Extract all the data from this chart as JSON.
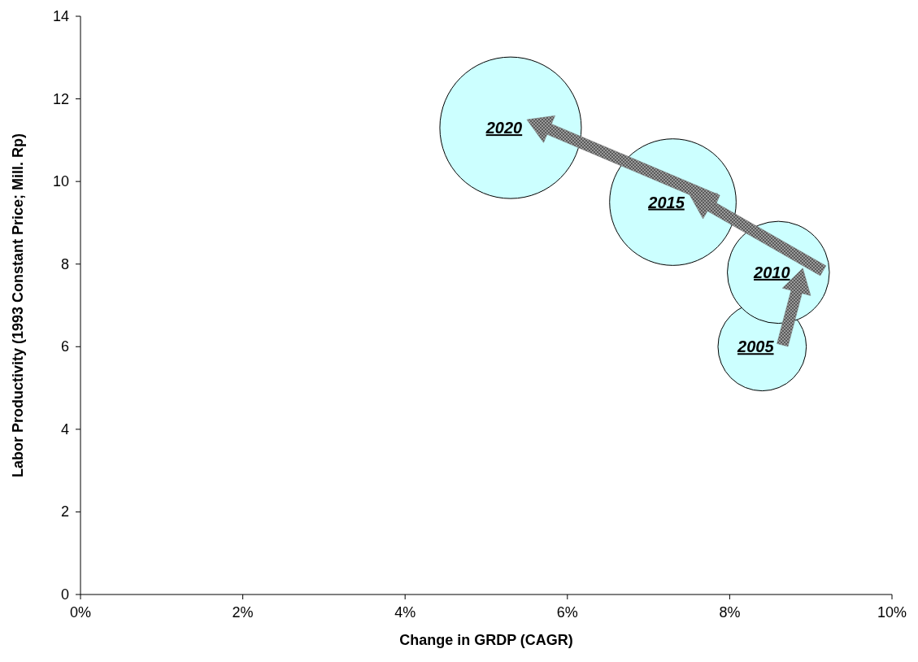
{
  "chart_data": {
    "type": "bubble",
    "xlabel": "Change in GRDP (CAGR)",
    "ylabel": "Labor Productivity (1993 Constant Price; Mill. Rp)",
    "xlim": [
      0,
      10
    ],
    "ylim": [
      0,
      14
    ],
    "xticks": [
      {
        "value": 0,
        "label": "0%"
      },
      {
        "value": 2,
        "label": "2%"
      },
      {
        "value": 4,
        "label": "4%"
      },
      {
        "value": 6,
        "label": "6%"
      },
      {
        "value": 8,
        "label": "8%"
      },
      {
        "value": 10,
        "label": "10%"
      }
    ],
    "yticks": [
      0,
      2,
      4,
      6,
      8,
      10,
      12,
      14
    ],
    "grid": false,
    "series": [
      {
        "color": "#ccffff",
        "x": [
          8.4,
          8.6,
          7.3,
          5.3
        ],
        "values": [
          6.0,
          7.8,
          9.5,
          11.3
        ],
        "sizes": [
          0.39,
          0.52,
          0.8,
          1
        ]
      }
    ],
    "annotations": [
      {
        "text": "2005",
        "x": 8.4,
        "y": 6.0
      },
      {
        "text": "2010",
        "x": 8.6,
        "y": 7.8
      },
      {
        "text": "2015",
        "x": 7.3,
        "y": 9.5
      },
      {
        "text": "2020",
        "x": 5.3,
        "y": 11.3
      }
    ]
  }
}
